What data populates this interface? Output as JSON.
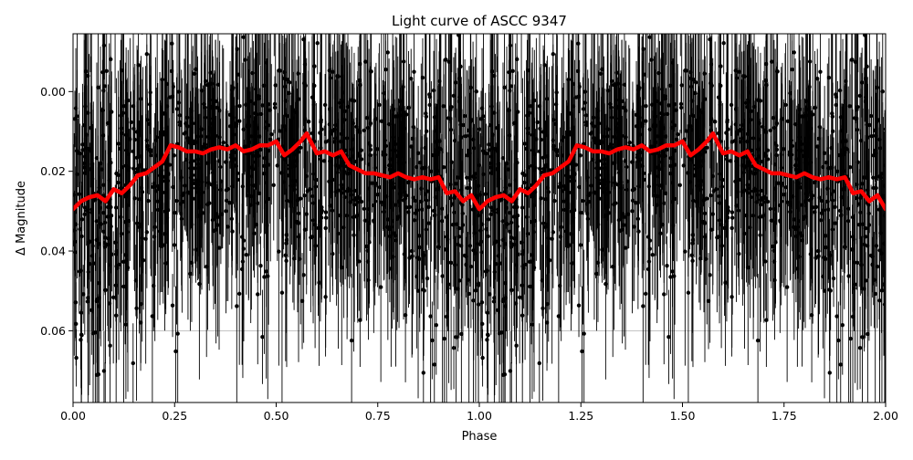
{
  "chart_data": {
    "type": "scatter",
    "title": "Light curve of ASCC 9347",
    "xlabel": "Phase",
    "ylabel": "Δ Magnitude",
    "xlim": [
      0.0,
      2.0
    ],
    "ylim": [
      0.078,
      -0.0145
    ],
    "y_inverted": true,
    "grid": "horizontal line at 0.06",
    "xticks": [
      {
        "value": 0.0,
        "label": "0.00"
      },
      {
        "value": 0.25,
        "label": "0.25"
      },
      {
        "value": 0.5,
        "label": "0.50"
      },
      {
        "value": 0.75,
        "label": "0.75"
      },
      {
        "value": 1.0,
        "label": "1.00"
      },
      {
        "value": 1.25,
        "label": "1.25"
      },
      {
        "value": 1.5,
        "label": "1.50"
      },
      {
        "value": 1.75,
        "label": "1.75"
      },
      {
        "value": 2.0,
        "label": "2.00"
      }
    ],
    "yticks": [
      {
        "value": 0.0,
        "label": "0.00"
      },
      {
        "value": 0.02,
        "label": "0.02"
      },
      {
        "value": 0.04,
        "label": "0.04"
      },
      {
        "value": 0.06,
        "label": "0.06"
      }
    ],
    "series": [
      {
        "kind": "observations with error bars",
        "color": "#000000",
        "description": "dense noisy photometry points, repeated over two cycles"
      },
      {
        "kind": "binned mean curve",
        "color": "#ff0000",
        "x": [
          0.0,
          0.02,
          0.04,
          0.06,
          0.08,
          0.1,
          0.12,
          0.14,
          0.16,
          0.18,
          0.2,
          0.22,
          0.24,
          0.26,
          0.28,
          0.3,
          0.32,
          0.34,
          0.36,
          0.38,
          0.4,
          0.42,
          0.44,
          0.46,
          0.48,
          0.5,
          0.52,
          0.54,
          0.56,
          0.575,
          0.6,
          0.62,
          0.64,
          0.66,
          0.68,
          0.7,
          0.72,
          0.74,
          0.76,
          0.78,
          0.8,
          0.82,
          0.84,
          0.86,
          0.88,
          0.9,
          0.92,
          0.94,
          0.96,
          0.98,
          1.0
        ],
        "y": [
          0.0295,
          0.0275,
          0.0265,
          0.026,
          0.0275,
          0.0245,
          0.0255,
          0.0235,
          0.021,
          0.0205,
          0.019,
          0.0175,
          0.0135,
          0.014,
          0.015,
          0.015,
          0.0155,
          0.0145,
          0.014,
          0.0145,
          0.0135,
          0.015,
          0.0145,
          0.0135,
          0.0135,
          0.0125,
          0.016,
          0.0145,
          0.0125,
          0.0105,
          0.0155,
          0.015,
          0.016,
          0.015,
          0.0185,
          0.0195,
          0.0205,
          0.0205,
          0.021,
          0.0215,
          0.0205,
          0.0215,
          0.022,
          0.0215,
          0.022,
          0.0215,
          0.0255,
          0.025,
          0.0275,
          0.026,
          0.0295
        ]
      }
    ]
  }
}
